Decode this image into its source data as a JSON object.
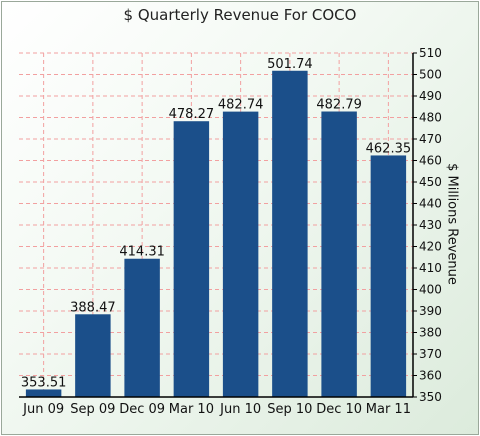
{
  "chart_data": {
    "type": "bar",
    "title": "$ Quarterly Revenue For COCO",
    "ylabel": "$ Millions Revenue",
    "xlabel": "",
    "categories": [
      "Jun 09",
      "Sep 09",
      "Dec 09",
      "Mar 10",
      "Jun 10",
      "Sep 10",
      "Dec 10",
      "Mar 11"
    ],
    "values": [
      353.51,
      388.47,
      414.31,
      478.27,
      482.74,
      501.74,
      482.79,
      462.35
    ],
    "value_labels": [
      "353.51",
      "388.47",
      "414.31",
      "478.27",
      "482.74",
      "501.74",
      "482.79",
      "462.35"
    ],
    "ylim": [
      350,
      510
    ],
    "yticks": [
      350,
      360,
      370,
      380,
      390,
      400,
      410,
      420,
      430,
      440,
      450,
      460,
      470,
      480,
      490,
      500,
      510
    ],
    "y_axis_side": "right",
    "grid": true,
    "bar_color": "#1b4f8a",
    "grid_color": "#f2a0a0"
  }
}
